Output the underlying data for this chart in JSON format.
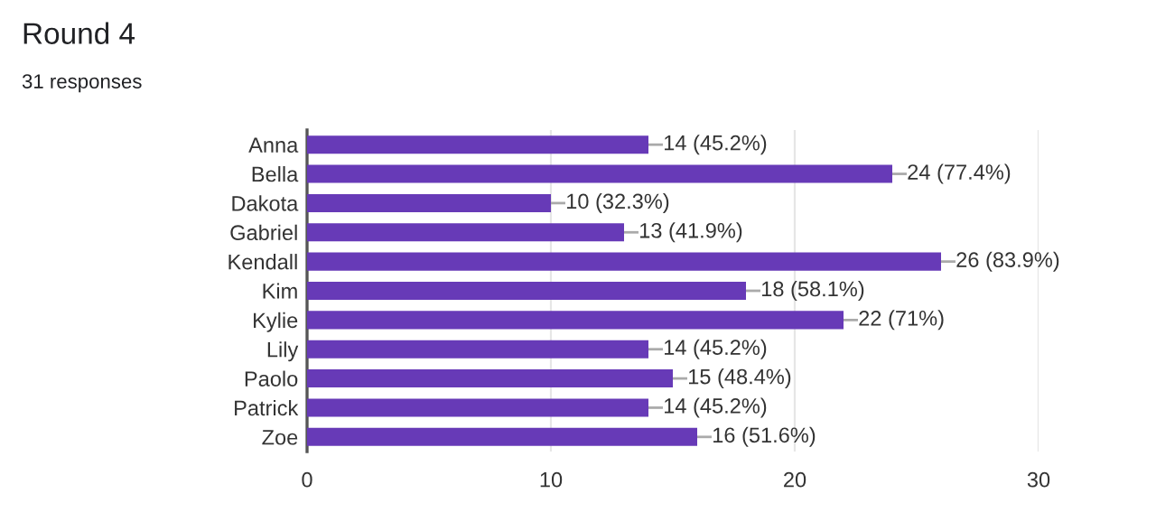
{
  "chart_data": {
    "type": "bar",
    "orientation": "horizontal",
    "title": "Round 4",
    "subtitle": "31 responses",
    "categories": [
      "Anna",
      "Bella",
      "Dakota",
      "Gabriel",
      "Kendall",
      "Kim",
      "Kylie",
      "Lily",
      "Paolo",
      "Patrick",
      "Zoe"
    ],
    "values": [
      14,
      24,
      10,
      13,
      26,
      18,
      22,
      14,
      15,
      14,
      16
    ],
    "value_labels": [
      "14 (45.2%)",
      "24 (77.4%)",
      "10 (32.3%)",
      "13 (41.9%)",
      "26 (83.9%)",
      "18 (58.1%)",
      "22 (71%)",
      "14 (45.2%)",
      "15 (48.4%)",
      "14 (45.2%)",
      "16 (51.6%)"
    ],
    "color": "#673ab7",
    "xlim": [
      0,
      30
    ],
    "xticks": [
      0,
      10,
      20,
      30
    ],
    "grid": "x",
    "legend": false
  }
}
